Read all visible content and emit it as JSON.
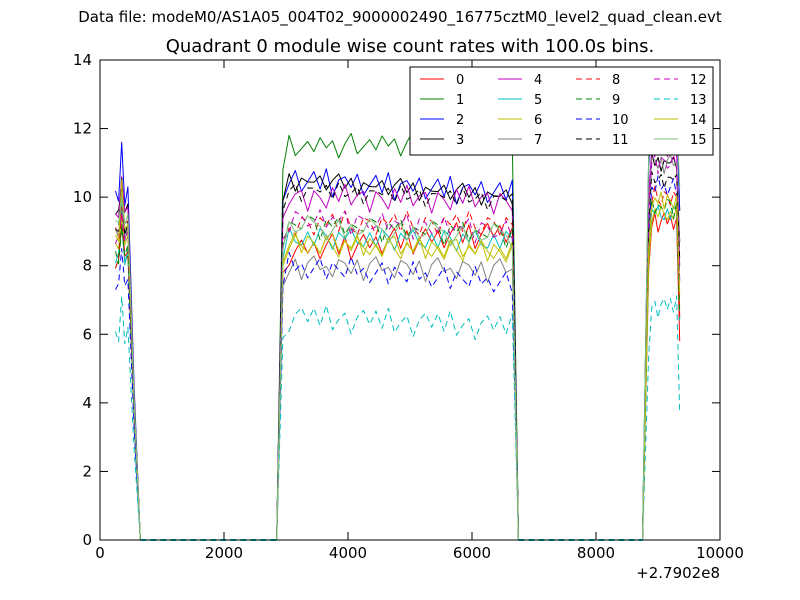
{
  "suptitle": "Data file: modeM0/AS1A05_004T02_9000002490_16775cztM0_level2_quad_clean.evt",
  "chart_data": {
    "type": "line",
    "title": "Quadrant 0 module wise count rates with 100.0s bins.",
    "xlabel": "",
    "ylabel": "",
    "x_offset_label": "+2.7902e8",
    "xlim": [
      0,
      10000
    ],
    "ylim": [
      0,
      14
    ],
    "xticks": [
      "0",
      "2000",
      "4000",
      "6000",
      "8000",
      "10000"
    ],
    "yticks": [
      "0",
      "2",
      "4",
      "6",
      "8",
      "10",
      "12",
      "14"
    ],
    "grid": false,
    "legend_placement": "top-right",
    "legend_columns": 4,
    "series": [
      {
        "name": "0",
        "color": "#ff0000",
        "dash": false,
        "base": [
          9.0,
          8.4,
          9.0,
          9.3
        ],
        "pattern": [
          0.2,
          -0.3,
          0.1,
          0.4,
          -0.2,
          0.3,
          -0.4,
          0.0,
          0.3,
          -0.1
        ]
      },
      {
        "name": "1",
        "color": "#008000",
        "dash": false,
        "base": [
          8.0,
          11.4,
          11.6,
          12.7
        ],
        "pattern": [
          -0.1,
          0.3,
          0.0,
          0.2,
          -0.3,
          0.1,
          0.4,
          -0.2,
          0.0,
          0.2
        ]
      },
      {
        "name": "2",
        "color": "#0000ff",
        "dash": false,
        "base": [
          10.0,
          10.5,
          10.1,
          12.3
        ],
        "pattern": [
          0.3,
          -0.2,
          0.4,
          -0.4,
          0.1,
          0.2,
          -0.1,
          0.3,
          -0.3,
          0.0
        ]
      },
      {
        "name": "3",
        "color": "#000000",
        "dash": false,
        "base": [
          9.5,
          10.5,
          10.0,
          11.0
        ],
        "pattern": [
          0.0,
          0.2,
          -0.2,
          0.1,
          0.3,
          -0.1,
          0.2,
          -0.3,
          0.1,
          0.0
        ]
      },
      {
        "name": "4",
        "color": "#bf00bf",
        "dash": false,
        "base": [
          9.4,
          10.0,
          9.9,
          11.5
        ],
        "pattern": [
          0.2,
          0.0,
          -0.3,
          0.3,
          -0.1,
          0.4,
          -0.2,
          0.1,
          0.2,
          -0.4
        ]
      },
      {
        "name": "5",
        "color": "#00bfbf",
        "dash": false,
        "base": [
          8.2,
          8.8,
          8.7,
          9.5
        ],
        "pattern": [
          -0.2,
          0.3,
          0.1,
          -0.3,
          0.2,
          0.0,
          0.3,
          -0.1,
          -0.2,
          0.2
        ]
      },
      {
        "name": "6",
        "color": "#bfbf00",
        "dash": false,
        "base": [
          8.6,
          8.6,
          8.4,
          9.5
        ],
        "pattern": [
          0.1,
          -0.2,
          0.3,
          0.0,
          -0.3,
          0.2,
          -0.1,
          0.3,
          0.0,
          -0.2
        ]
      },
      {
        "name": "7",
        "color": "#808080",
        "dash": false,
        "base": [
          8.9,
          8.0,
          7.9,
          11.0
        ],
        "pattern": [
          0.3,
          -0.1,
          0.0,
          -0.3,
          0.2,
          0.1,
          -0.2,
          0.2,
          -0.4,
          0.1
        ]
      },
      {
        "name": "8",
        "color": "#ff0000",
        "dash": true,
        "base": [
          8.1,
          9.2,
          9.2,
          10.0
        ],
        "pattern": [
          -0.3,
          0.2,
          0.0,
          0.3,
          -0.2,
          0.4,
          -0.1,
          -0.3,
          0.2,
          0.1
        ]
      },
      {
        "name": "9",
        "color": "#008000",
        "dash": true,
        "base": [
          8.3,
          9.2,
          8.9,
          9.7
        ],
        "pattern": [
          0.2,
          -0.4,
          0.2,
          0.0,
          0.3,
          -0.2,
          0.1,
          0.0,
          -0.1,
          0.3
        ]
      },
      {
        "name": "10",
        "color": "#0000ff",
        "dash": true,
        "base": [
          7.3,
          8.0,
          7.5,
          10.3
        ],
        "pattern": [
          0.0,
          0.3,
          -0.3,
          0.2,
          0.0,
          -0.2,
          0.4,
          -0.1,
          0.1,
          -0.3
        ]
      },
      {
        "name": "11",
        "color": "#000000",
        "dash": true,
        "base": [
          9.0,
          10.2,
          9.9,
          10.5
        ],
        "pattern": [
          0.1,
          0.0,
          0.2,
          -0.2,
          0.3,
          -0.1,
          0.0,
          0.2,
          -0.3,
          0.1
        ]
      },
      {
        "name": "12",
        "color": "#bf00bf",
        "dash": true,
        "base": [
          8.7,
          9.4,
          9.0,
          11.0
        ],
        "pattern": [
          -0.1,
          0.3,
          -0.2,
          0.1,
          0.0,
          0.3,
          -0.4,
          0.2,
          0.1,
          -0.2
        ]
      },
      {
        "name": "13",
        "color": "#00bfbf",
        "dash": true,
        "base": [
          5.9,
          6.5,
          6.2,
          6.8
        ],
        "pattern": [
          0.3,
          -0.2,
          0.4,
          -0.3,
          0.0,
          0.2,
          -0.4,
          0.1,
          0.3,
          -0.1
        ]
      },
      {
        "name": "14",
        "color": "#bfbf00",
        "dash": false,
        "base": [
          8.9,
          8.7,
          8.4,
          9.9
        ],
        "pattern": [
          0.0,
          -0.3,
          0.2,
          0.3,
          -0.2,
          0.1,
          -0.1,
          0.3,
          -0.3,
          0.2
        ]
      },
      {
        "name": "15",
        "color": "#7fbf7f",
        "dash": false,
        "base": [
          9.2,
          9.1,
          8.8,
          12.6
        ],
        "pattern": [
          0.2,
          0.1,
          -0.3,
          0.0,
          0.3,
          -0.2,
          0.2,
          -0.1,
          0.0,
          0.4
        ]
      }
    ],
    "segments": [
      {
        "start": 250,
        "end": 450,
        "step": 50,
        "drop_to": 650
      },
      {
        "start": 2950,
        "end": 6650,
        "step": 100,
        "drop_to": 6750
      },
      {
        "start": 8850,
        "end": 9350,
        "step": 50,
        "drop_to": null
      }
    ],
    "gaps": [
      {
        "start": 650,
        "end": 2850
      },
      {
        "start": 6750,
        "end": 8750
      }
    ]
  }
}
